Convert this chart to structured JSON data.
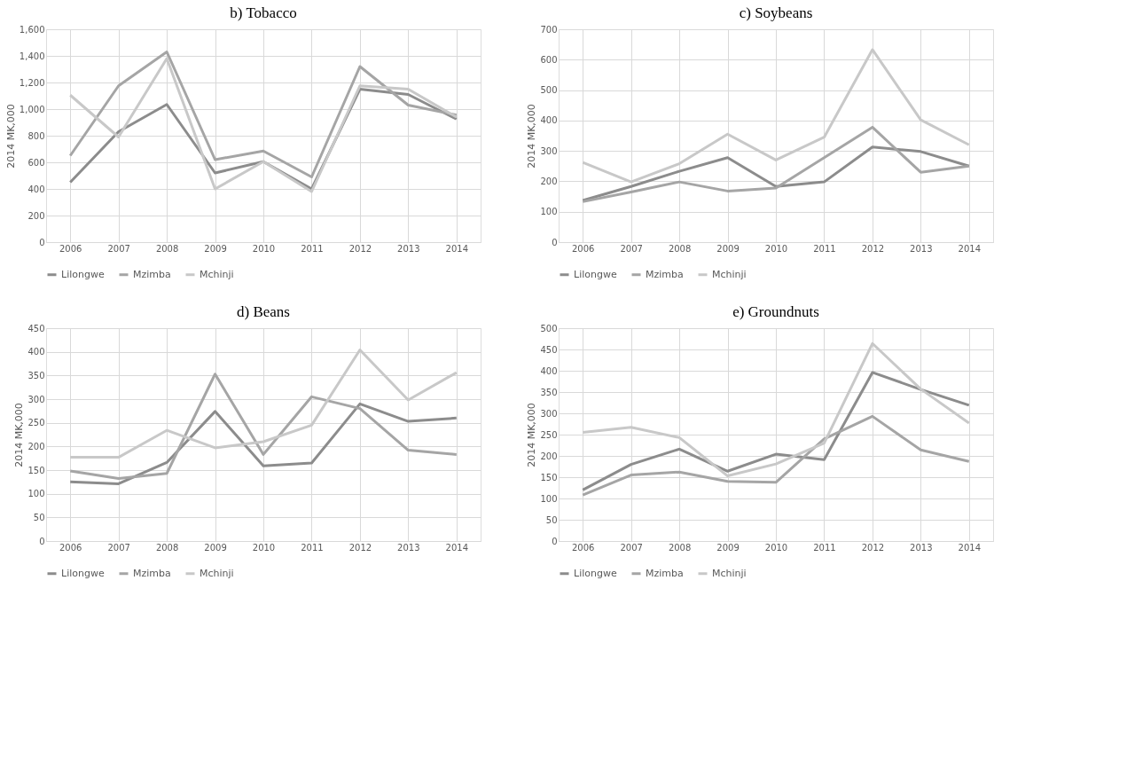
{
  "chart_data": [
    {
      "type": "line",
      "title": "b) Tobacco",
      "ylabel": "2014 MK,000",
      "categories": [
        "2006",
        "2007",
        "2008",
        "2009",
        "2010",
        "2011",
        "2012",
        "2013",
        "2014"
      ],
      "ylim": [
        0,
        1600
      ],
      "yticks": [
        0,
        200,
        400,
        600,
        800,
        {
          "value": 1000,
          "label": "1,000"
        },
        {
          "value": 1200,
          "label": "1,200"
        },
        {
          "value": 1400,
          "label": "1,400"
        },
        {
          "value": 1600,
          "label": "1,600"
        }
      ],
      "grid": true,
      "legend": "bottom",
      "marker": "none",
      "line_style": "solid",
      "series": [
        {
          "name": "Lilongwe",
          "color": "#8c8c8c",
          "values": [
            450,
            830,
            1035,
            520,
            605,
            400,
            1150,
            1110,
            925
          ]
        },
        {
          "name": "Mzimba",
          "color": "#a5a5a5",
          "values": [
            650,
            1175,
            1430,
            620,
            685,
            490,
            1320,
            1030,
            955
          ]
        },
        {
          "name": "Mchinji",
          "color": "#c8c8c8",
          "values": [
            1105,
            790,
            1380,
            400,
            605,
            380,
            1175,
            1150,
            940
          ]
        }
      ]
    },
    {
      "type": "line",
      "title": "c) Soybeans",
      "ylabel": "2014 MK,000",
      "categories": [
        "2006",
        "2007",
        "2008",
        "2009",
        "2010",
        "2011",
        "2012",
        "2013",
        "2014"
      ],
      "ylim": [
        0,
        700
      ],
      "yticks": [
        0,
        100,
        200,
        300,
        400,
        500,
        600,
        700
      ],
      "grid": true,
      "legend": "bottom",
      "marker": "none",
      "line_style": "solid",
      "series": [
        {
          "name": "Lilongwe",
          "color": "#8c8c8c",
          "values": [
            137,
            183,
            233,
            278,
            183,
            198,
            313,
            298,
            250
          ]
        },
        {
          "name": "Mzimba",
          "color": "#a5a5a5",
          "values": [
            133,
            165,
            198,
            168,
            178,
            278,
            378,
            230,
            250
          ]
        },
        {
          "name": "Mchinji",
          "color": "#c8c8c8",
          "values": [
            262,
            198,
            258,
            355,
            270,
            345,
            633,
            402,
            320
          ]
        }
      ]
    },
    {
      "type": "line",
      "title": "d) Beans",
      "ylabel": "2014 MK,000",
      "categories": [
        "2006",
        "2007",
        "2008",
        "2009",
        "2010",
        "2011",
        "2012",
        "2013",
        "2014"
      ],
      "ylim": [
        0,
        450
      ],
      "yticks": [
        0,
        50,
        100,
        150,
        200,
        250,
        300,
        350,
        400,
        450
      ],
      "grid": true,
      "legend": "bottom",
      "marker": "none",
      "line_style": "solid",
      "series": [
        {
          "name": "Lilongwe",
          "color": "#8c8c8c",
          "values": [
            125,
            121,
            166,
            274,
            159,
            165,
            290,
            253,
            260
          ]
        },
        {
          "name": "Mzimba",
          "color": "#a5a5a5",
          "values": [
            148,
            132,
            143,
            353,
            183,
            305,
            280,
            192,
            183
          ]
        },
        {
          "name": "Mchinji",
          "color": "#c8c8c8",
          "values": [
            177,
            177,
            234,
            197,
            210,
            245,
            404,
            298,
            356
          ]
        }
      ]
    },
    {
      "type": "line",
      "title": "e) Groundnuts",
      "ylabel": "2014 MK,000",
      "categories": [
        "2006",
        "2007",
        "2008",
        "2009",
        "2010",
        "2011",
        "2012",
        "2013",
        "2014"
      ],
      "ylim": [
        0,
        500
      ],
      "yticks": [
        0,
        50,
        100,
        150,
        200,
        250,
        300,
        350,
        400,
        450,
        500
      ],
      "grid": true,
      "legend": "bottom",
      "marker": "none",
      "line_style": "solid",
      "series": [
        {
          "name": "Lilongwe",
          "color": "#8c8c8c",
          "values": [
            120,
            180,
            216,
            164,
            204,
            191,
            396,
            356,
            319
          ]
        },
        {
          "name": "Mzimba",
          "color": "#a5a5a5",
          "values": [
            108,
            155,
            162,
            140,
            138,
            240,
            293,
            214,
            187
          ]
        },
        {
          "name": "Mchinji",
          "color": "#c8c8c8",
          "values": [
            255,
            267,
            243,
            153,
            181,
            230,
            464,
            357,
            277
          ]
        }
      ]
    }
  ]
}
